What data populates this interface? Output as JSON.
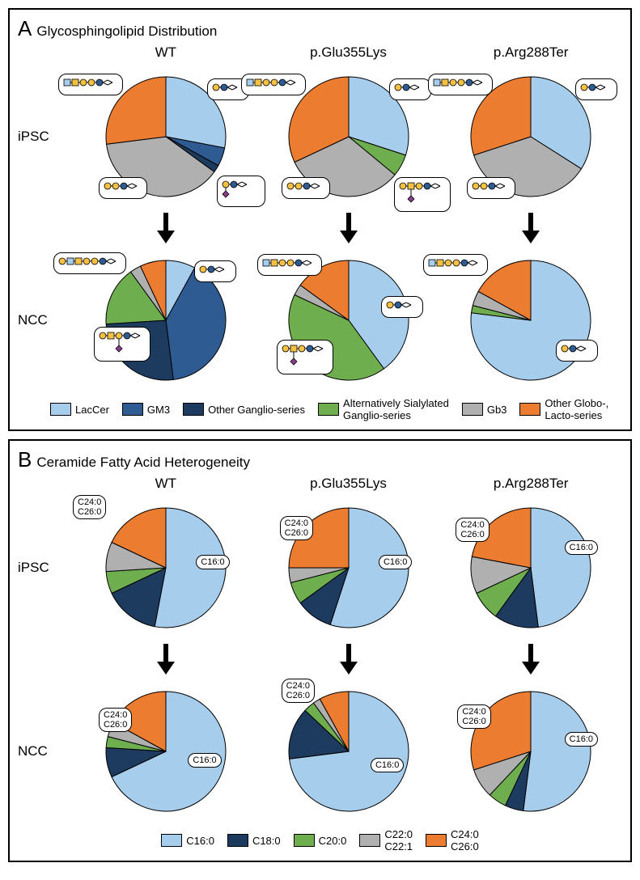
{
  "panelA": {
    "letter": "A",
    "title": "Glycosphingolipid Distribution",
    "columns": [
      "WT",
      "p.Glu355Lys",
      "p.Arg288Ter"
    ],
    "rows": [
      "iPSC",
      "NCC"
    ],
    "colors": {
      "LacCer": "#a7cdec",
      "GM3": "#2f5b93",
      "OtherGanglio": "#1d3a5f",
      "AltSialyl": "#6fae4f",
      "Gb3": "#b0b0b0",
      "OtherGlobo": "#ec7d30"
    },
    "legend": [
      {
        "key": "LacCer",
        "label": "LacCer"
      },
      {
        "key": "GM3",
        "label": "GM3"
      },
      {
        "key": "OtherGanglio",
        "label": "Other Ganglio-series"
      },
      {
        "key": "AltSialyl",
        "label": "Alternatively Sialylated\nGanglio-series"
      },
      {
        "key": "Gb3",
        "label": "Gb3"
      },
      {
        "key": "OtherGlobo",
        "label": "Other Globo-,\nLacto-series"
      }
    ],
    "pies": {
      "iPSC": {
        "WT": {
          "LacCer": 28,
          "GM3": 5,
          "OtherGanglio": 2,
          "AltSialyl": 0,
          "Gb3": 38,
          "OtherGlobo": 27
        },
        "Glu355Lys": {
          "LacCer": 30,
          "GM3": 0,
          "OtherGanglio": 0,
          "AltSialyl": 6,
          "Gb3": 32,
          "OtherGlobo": 32
        },
        "Arg288Ter": {
          "LacCer": 34,
          "GM3": 0,
          "OtherGanglio": 0,
          "AltSialyl": 0,
          "Gb3": 36,
          "OtherGlobo": 30
        }
      },
      "NCC": {
        "WT": {
          "LacCer": 8,
          "GM3": 40,
          "OtherGanglio": 26,
          "AltSialyl": 16,
          "Gb3": 3,
          "OtherGlobo": 7
        },
        "Glu355Lys": {
          "LacCer": 40,
          "GM3": 0,
          "OtherGanglio": 0,
          "AltSialyl": 42,
          "Gb3": 3,
          "OtherGlobo": 15
        },
        "Arg288Ter": {
          "LacCer": 77,
          "GM3": 0,
          "OtherGanglio": 0,
          "AltSialyl": 2,
          "Gb3": 4,
          "OtherGlobo": 17
        }
      }
    }
  },
  "panelB": {
    "letter": "B",
    "title": "Ceramide Fatty Acid Heterogeneity",
    "columns": [
      "WT",
      "p.Glu355Lys",
      "p.Arg288Ter"
    ],
    "rows": [
      "iPSC",
      "NCC"
    ],
    "colors": {
      "C16": "#a7cdec",
      "C18": "#1d3a5f",
      "C20": "#6fae4f",
      "C22": "#b0b0b0",
      "C24_26": "#ec7d30"
    },
    "legend": [
      {
        "key": "C16",
        "label": "C16:0"
      },
      {
        "key": "C18",
        "label": "C18:0"
      },
      {
        "key": "C20",
        "label": "C20:0"
      },
      {
        "key": "C22",
        "label": "C22:0\nC22:1"
      },
      {
        "key": "C24_26",
        "label": "C24:0\nC26:0"
      }
    ],
    "labels": {
      "C16": "C16:0",
      "C24_26": "C24:0\nC26:0"
    },
    "pies": {
      "iPSC": {
        "WT": {
          "C16": 53,
          "C18": 15,
          "C20": 6,
          "C22": 8,
          "C24_26": 18
        },
        "Glu355Lys": {
          "C16": 55,
          "C18": 10,
          "C20": 6,
          "C22": 4,
          "C24_26": 25
        },
        "Arg288Ter": {
          "C16": 48,
          "C18": 12,
          "C20": 8,
          "C22": 10,
          "C24_26": 22
        }
      },
      "NCC": {
        "WT": {
          "C16": 68,
          "C18": 8,
          "C20": 3,
          "C22": 4,
          "C24_26": 17
        },
        "Glu355Lys": {
          "C16": 73,
          "C18": 14,
          "C20": 3,
          "C22": 2,
          "C24_26": 8
        },
        "Arg288Ter": {
          "C16": 52,
          "C18": 5,
          "C20": 5,
          "C22": 8,
          "C24_26": 30
        }
      }
    }
  },
  "pieRadius": 74,
  "arrowColor": "#000000"
}
